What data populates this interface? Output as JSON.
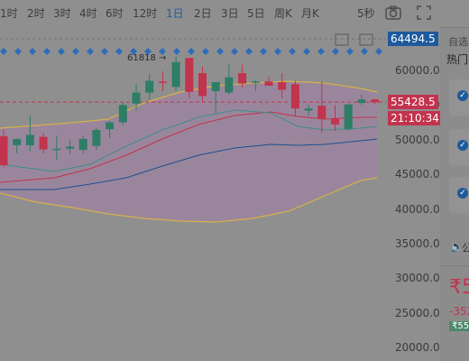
{
  "toolbar": {
    "timeframes": [
      {
        "label": "1时",
        "active": false
      },
      {
        "label": "2时",
        "active": false
      },
      {
        "label": "3时",
        "active": false
      },
      {
        "label": "4时",
        "active": false
      },
      {
        "label": "6时",
        "active": false
      },
      {
        "label": "12时",
        "active": false
      },
      {
        "label": "1日",
        "active": true
      },
      {
        "label": "2日",
        "active": false
      },
      {
        "label": "3日",
        "active": false
      },
      {
        "label": "5日",
        "active": false
      },
      {
        "label": "周K",
        "active": false
      },
      {
        "label": "月K",
        "active": false
      }
    ],
    "refresh_interval": "5秒",
    "icons": [
      "camera-icon",
      "fullscreen-icon"
    ]
  },
  "chart": {
    "high_marker": "61818",
    "current_price": "55428.5",
    "countdown": "21:10:34",
    "top_price_tag": "64494.5",
    "y_ticks": [
      "60000.0",
      "55000.0",
      "50000.0",
      "45000.0",
      "40000.0",
      "35000.0",
      "30000.0",
      "25000.0",
      "20000.0"
    ],
    "colors": {
      "up": "#2e7d67",
      "down": "#c2334d",
      "tag_blue": "#1d5a9c",
      "tag_red": "#c2334d",
      "band_fill": "#a47fa8"
    }
  },
  "chart_data": {
    "type": "candlestick",
    "ylim": [
      19000,
      64500
    ],
    "candles": [
      {
        "o": 50500,
        "h": 51500,
        "l": 46000,
        "c": 46300
      },
      {
        "o": 49200,
        "h": 50200,
        "l": 48000,
        "c": 50100
      },
      {
        "o": 49200,
        "h": 53500,
        "l": 48300,
        "c": 50700
      },
      {
        "o": 50400,
        "h": 51000,
        "l": 48000,
        "c": 48600
      },
      {
        "o": 48500,
        "h": 50600,
        "l": 47000,
        "c": 48700
      },
      {
        "o": 48700,
        "h": 50000,
        "l": 47900,
        "c": 49000
      },
      {
        "o": 48500,
        "h": 50600,
        "l": 48000,
        "c": 50100
      },
      {
        "o": 49100,
        "h": 51700,
        "l": 48500,
        "c": 51400
      },
      {
        "o": 51500,
        "h": 52700,
        "l": 50200,
        "c": 52500
      },
      {
        "o": 52500,
        "h": 55500,
        "l": 52000,
        "c": 55000
      },
      {
        "o": 55200,
        "h": 58000,
        "l": 54200,
        "c": 56800
      },
      {
        "o": 56800,
        "h": 59500,
        "l": 55800,
        "c": 58500
      },
      {
        "o": 58400,
        "h": 59900,
        "l": 57000,
        "c": 58200
      },
      {
        "o": 57600,
        "h": 62000,
        "l": 57000,
        "c": 61200
      },
      {
        "o": 61800,
        "h": 61800,
        "l": 56000,
        "c": 56900
      },
      {
        "o": 59600,
        "h": 60500,
        "l": 55500,
        "c": 56300
      },
      {
        "o": 57000,
        "h": 58000,
        "l": 53800,
        "c": 58300
      },
      {
        "o": 56800,
        "h": 61000,
        "l": 56500,
        "c": 59000
      },
      {
        "o": 59600,
        "h": 60800,
        "l": 57500,
        "c": 58100
      },
      {
        "o": 58400,
        "h": 58600,
        "l": 57000,
        "c": 58400
      },
      {
        "o": 58400,
        "h": 59100,
        "l": 57800,
        "c": 57800
      },
      {
        "o": 58300,
        "h": 59600,
        "l": 56000,
        "c": 57200
      },
      {
        "o": 58000,
        "h": 58500,
        "l": 53500,
        "c": 54500
      },
      {
        "o": 54200,
        "h": 55000,
        "l": 53500,
        "c": 54500
      },
      {
        "o": 54900,
        "h": 58400,
        "l": 51000,
        "c": 53000
      },
      {
        "o": 53000,
        "h": 55000,
        "l": 51300,
        "c": 52200
      },
      {
        "o": 51500,
        "h": 54800,
        "l": 51300,
        "c": 55100
      },
      {
        "o": 55300,
        "h": 56500,
        "l": 55000,
        "c": 55800
      },
      {
        "o": 55800,
        "h": 55900,
        "l": 55200,
        "c": 55400
      }
    ]
  },
  "sidebar": {
    "label_auto": "自选",
    "label_hot": "热门",
    "sound_label": "公",
    "price_partial": "₹5",
    "change_partial": "-352",
    "badge_partial": "₹55"
  }
}
